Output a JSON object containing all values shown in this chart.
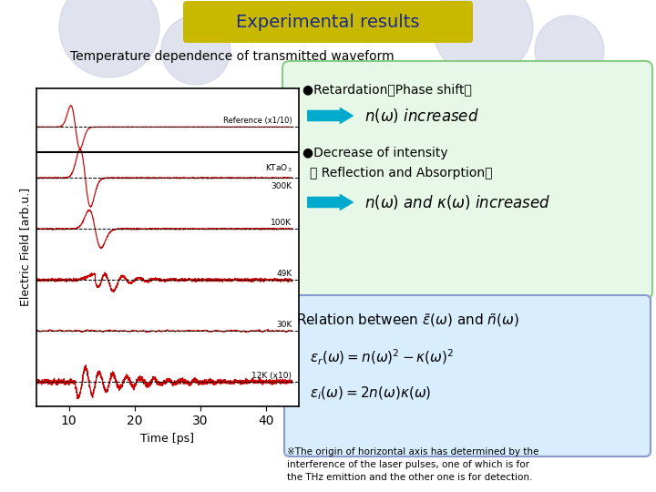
{
  "title": "Experimental results",
  "subtitle": "Temperature dependence of transmitted waveform",
  "bg_color": "#ffffff",
  "title_bg_top": "#e8e060",
  "title_bg_bottom": "#b8a800",
  "title_text_color": "#1a2a8a",
  "slide_bg_circles_color": "#c8cce0",
  "footnote": "※The origin of horizontal axis has determined by the\ninterference of the laser pulses, one of which is for\nthe THz emittion and the other one is for detection.",
  "xlabel": "Time [ps]",
  "ylabel": "Electric Field [arb.u.]",
  "waveform_color": "#cc0000",
  "dashed_color": "#000000",
  "green_box_bg": "#e8f8e8",
  "green_box_edge": "#88cc88",
  "blue_box_bg": "#d8eeff",
  "blue_box_edge": "#8899cc",
  "arrow_color": "#00aacc"
}
